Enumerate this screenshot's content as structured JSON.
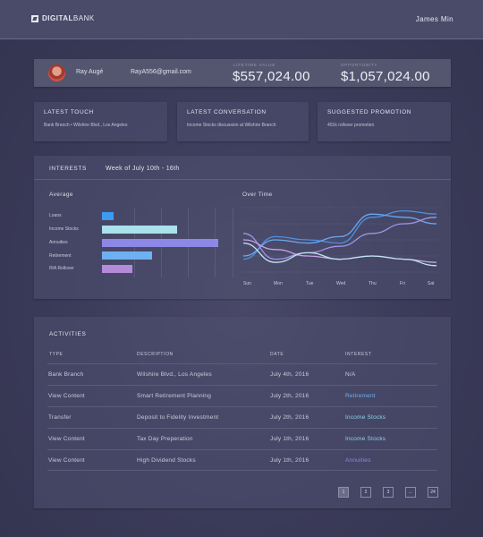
{
  "header": {
    "logo_bold": "DIGITAL",
    "logo_rest": "BANK",
    "user_name": "James Min"
  },
  "profile": {
    "name": "Ray Augé",
    "email": "RayA556@gmail.com",
    "lifetime_label": "LIFETIME VALUE",
    "lifetime_value": "$557,024.00",
    "opportunity_label": "OPPORTUNITY",
    "opportunity_value": "$1,057,024.00"
  },
  "cards": [
    {
      "title": "LATEST TOUCH",
      "text": "Bank Branch  •  Wilshire Blvd., Los Angeles"
    },
    {
      "title": "LATEST CONVERSATION",
      "text": "Income Stocks discussion at Wilshire Branch"
    },
    {
      "title": "SUGGESTED PROMOTION",
      "text": "401k rollover promotion"
    }
  ],
  "interests": {
    "title": "INTERESTS",
    "week": "Week of July 10th - 16th",
    "average_label": "Average",
    "overtime_label": "Over Time"
  },
  "chart_data": [
    {
      "type": "bar",
      "title": "Average",
      "categories": [
        "Loans",
        "Income Stocks",
        "Annuities",
        "Retirement",
        "IRA Rollover"
      ],
      "values": [
        0.09,
        0.6,
        0.93,
        0.4,
        0.24
      ],
      "colors": [
        "#3d9bef",
        "#a9e2ea",
        "#8d88e6",
        "#6fb0f3",
        "#b58ad8"
      ]
    },
    {
      "type": "line",
      "title": "Over Time",
      "categories": [
        "Sun",
        "Mon",
        "Tue",
        "Wed",
        "Thu",
        "Fri",
        "Sat"
      ],
      "series": [
        {
          "color": "#4f8fe3",
          "values": [
            0.2,
            0.55,
            0.5,
            0.45,
            0.85,
            0.95,
            0.9
          ]
        },
        {
          "color": "#6aa7f0",
          "values": [
            0.25,
            0.5,
            0.45,
            0.55,
            0.9,
            0.85,
            0.75
          ]
        },
        {
          "color": "#a493e6",
          "values": [
            0.6,
            0.2,
            0.3,
            0.4,
            0.6,
            0.75,
            0.85
          ]
        },
        {
          "color": "#c8a2e8",
          "values": [
            0.5,
            0.35,
            0.25,
            0.2,
            0.25,
            0.2,
            0.15
          ]
        },
        {
          "color": "#bfe6ef",
          "values": [
            0.45,
            0.15,
            0.3,
            0.2,
            0.25,
            0.2,
            0.1
          ]
        }
      ],
      "grid": true
    }
  ],
  "activities": {
    "title": "ACTIVITIES",
    "headers": [
      "TYPE",
      "DESCRIPTION",
      "DATE",
      "INTEREST"
    ],
    "rows": [
      {
        "type": "Bank Branch",
        "description": "Wilshire Blvd., Los Angeles",
        "date": "July 4th, 2016",
        "interest": "N/A",
        "interest_color": "#c9cadb"
      },
      {
        "type": "View Content",
        "description": "Smart Retirement Planning",
        "date": "July 2th, 2016",
        "interest": "Retirement",
        "interest_color": "#6fb0f3"
      },
      {
        "type": "Transfer",
        "description": "Deposit to Fidelity Investment",
        "date": "July 2th, 2016",
        "interest": "Income Stocks",
        "interest_color": "#8fd3e6"
      },
      {
        "type": "View Content",
        "description": "Tax Day Preperation",
        "date": "July 1th, 2016",
        "interest": "Income Stocks",
        "interest_color": "#8fd3e6"
      },
      {
        "type": "View Content",
        "description": "High Dividend Stocks",
        "date": "July 1th, 2016",
        "interest": "Annuities",
        "interest_color": "#8d88e6"
      }
    ],
    "pages": [
      "1",
      "2",
      "3",
      "...",
      "24"
    ]
  }
}
